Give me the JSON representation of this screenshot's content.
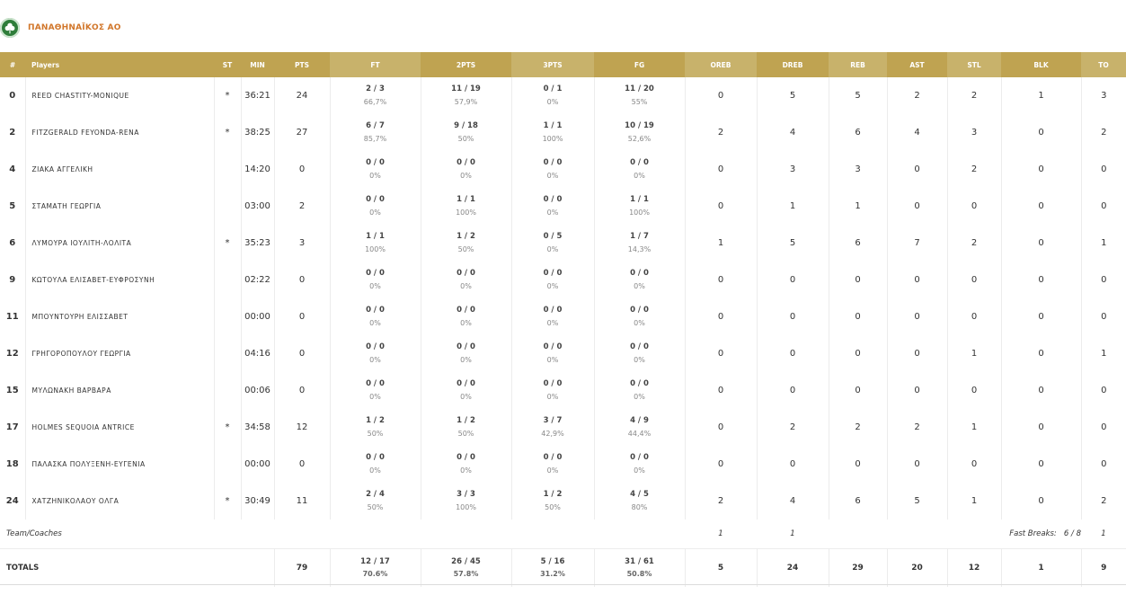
{
  "team": {
    "name": "ΠΑΝΑΘΗΝΑΪΚΟΣ ΑΟ",
    "logo_icon": "clover-logo-icon",
    "logo_color": "#2e7d3a"
  },
  "colors": {
    "header_gold": "#bfa351",
    "header_gold_light": "#c8b26b",
    "team_name": "#d1762a"
  },
  "columns": [
    "#",
    "Players",
    "ST",
    "MIN",
    "PTS",
    "FT",
    "2PTS",
    "3PTS",
    "FG",
    "OREB",
    "DREB",
    "REB",
    "AST",
    "STL",
    "BLK",
    "TO"
  ],
  "players": [
    {
      "num": "0",
      "name": "REED CHASTITY-MONIQUE",
      "st": "*",
      "min": "36:21",
      "pts": "24",
      "ft": "2 / 3",
      "ft_pct": "66,7%",
      "p2": "11 / 19",
      "p2_pct": "57,9%",
      "p3": "0 / 1",
      "p3_pct": "0%",
      "fg": "11 / 20",
      "fg_pct": "55%",
      "oreb": "0",
      "dreb": "5",
      "reb": "5",
      "ast": "2",
      "stl": "2",
      "blk": "1",
      "to": "3"
    },
    {
      "num": "2",
      "name": "FITZGERALD FEYONDA-RENA",
      "st": "*",
      "min": "38:25",
      "pts": "27",
      "ft": "6 / 7",
      "ft_pct": "85,7%",
      "p2": "9 / 18",
      "p2_pct": "50%",
      "p3": "1 / 1",
      "p3_pct": "100%",
      "fg": "10 / 19",
      "fg_pct": "52,6%",
      "oreb": "2",
      "dreb": "4",
      "reb": "6",
      "ast": "4",
      "stl": "3",
      "blk": "0",
      "to": "2"
    },
    {
      "num": "4",
      "name": "ΖΙΑΚΑ ΑΓΓΕΛΙΚΗ",
      "st": "",
      "min": "14:20",
      "pts": "0",
      "ft": "0 / 0",
      "ft_pct": "0%",
      "p2": "0 / 0",
      "p2_pct": "0%",
      "p3": "0 / 0",
      "p3_pct": "0%",
      "fg": "0 / 0",
      "fg_pct": "0%",
      "oreb": "0",
      "dreb": "3",
      "reb": "3",
      "ast": "0",
      "stl": "2",
      "blk": "0",
      "to": "0"
    },
    {
      "num": "5",
      "name": "ΣΤΑΜΑΤΗ ΓΕΩΡΓΙΑ",
      "st": "",
      "min": "03:00",
      "pts": "2",
      "ft": "0 / 0",
      "ft_pct": "0%",
      "p2": "1 / 1",
      "p2_pct": "100%",
      "p3": "0 / 0",
      "p3_pct": "0%",
      "fg": "1 / 1",
      "fg_pct": "100%",
      "oreb": "0",
      "dreb": "1",
      "reb": "1",
      "ast": "0",
      "stl": "0",
      "blk": "0",
      "to": "0"
    },
    {
      "num": "6",
      "name": "ΛΥΜΟΥΡΑ ΙΟΥΛΙΤΗ-ΛΟΛΙΤΑ",
      "st": "*",
      "min": "35:23",
      "pts": "3",
      "ft": "1 / 1",
      "ft_pct": "100%",
      "p2": "1 / 2",
      "p2_pct": "50%",
      "p3": "0 / 5",
      "p3_pct": "0%",
      "fg": "1 / 7",
      "fg_pct": "14,3%",
      "oreb": "1",
      "dreb": "5",
      "reb": "6",
      "ast": "7",
      "stl": "2",
      "blk": "0",
      "to": "1"
    },
    {
      "num": "9",
      "name": "ΚΩΤΟΥΛΑ ΕΛΙΣΑΒΕΤ-ΕΥΦΡΟΣΥΝΗ",
      "st": "",
      "min": "02:22",
      "pts": "0",
      "ft": "0 / 0",
      "ft_pct": "0%",
      "p2": "0 / 0",
      "p2_pct": "0%",
      "p3": "0 / 0",
      "p3_pct": "0%",
      "fg": "0 / 0",
      "fg_pct": "0%",
      "oreb": "0",
      "dreb": "0",
      "reb": "0",
      "ast": "0",
      "stl": "0",
      "blk": "0",
      "to": "0"
    },
    {
      "num": "11",
      "name": "ΜΠΟΥΝΤΟΥΡΗ ΕΛΙΣΣΑΒΕΤ",
      "st": "",
      "min": "00:00",
      "pts": "0",
      "ft": "0 / 0",
      "ft_pct": "0%",
      "p2": "0 / 0",
      "p2_pct": "0%",
      "p3": "0 / 0",
      "p3_pct": "0%",
      "fg": "0 / 0",
      "fg_pct": "0%",
      "oreb": "0",
      "dreb": "0",
      "reb": "0",
      "ast": "0",
      "stl": "0",
      "blk": "0",
      "to": "0"
    },
    {
      "num": "12",
      "name": "ΓΡΗΓΟΡΟΠΟΥΛΟΥ ΓΕΩΡΓΙΑ",
      "st": "",
      "min": "04:16",
      "pts": "0",
      "ft": "0 / 0",
      "ft_pct": "0%",
      "p2": "0 / 0",
      "p2_pct": "0%",
      "p3": "0 / 0",
      "p3_pct": "0%",
      "fg": "0 / 0",
      "fg_pct": "0%",
      "oreb": "0",
      "dreb": "0",
      "reb": "0",
      "ast": "0",
      "stl": "1",
      "blk": "0",
      "to": "1"
    },
    {
      "num": "15",
      "name": "ΜΥΛΩΝΑΚΗ ΒΑΡΒΑΡΑ",
      "st": "",
      "min": "00:06",
      "pts": "0",
      "ft": "0 / 0",
      "ft_pct": "0%",
      "p2": "0 / 0",
      "p2_pct": "0%",
      "p3": "0 / 0",
      "p3_pct": "0%",
      "fg": "0 / 0",
      "fg_pct": "0%",
      "oreb": "0",
      "dreb": "0",
      "reb": "0",
      "ast": "0",
      "stl": "0",
      "blk": "0",
      "to": "0"
    },
    {
      "num": "17",
      "name": "HOLMES SEQUOIA ANTRICE",
      "st": "*",
      "min": "34:58",
      "pts": "12",
      "ft": "1 / 2",
      "ft_pct": "50%",
      "p2": "1 / 2",
      "p2_pct": "50%",
      "p3": "3 / 7",
      "p3_pct": "42,9%",
      "fg": "4 / 9",
      "fg_pct": "44,4%",
      "oreb": "0",
      "dreb": "2",
      "reb": "2",
      "ast": "2",
      "stl": "1",
      "blk": "0",
      "to": "0"
    },
    {
      "num": "18",
      "name": "ΠΑΛΑΣΚΑ ΠΟΛΥΞΕΝΗ-ΕΥΓΕΝΙΑ",
      "st": "",
      "min": "00:00",
      "pts": "0",
      "ft": "0 / 0",
      "ft_pct": "0%",
      "p2": "0 / 0",
      "p2_pct": "0%",
      "p3": "0 / 0",
      "p3_pct": "0%",
      "fg": "0 / 0",
      "fg_pct": "0%",
      "oreb": "0",
      "dreb": "0",
      "reb": "0",
      "ast": "0",
      "stl": "0",
      "blk": "0",
      "to": "0"
    },
    {
      "num": "24",
      "name": "ΧΑΤΖΗΝΙΚΟΛΑΟΥ ΟΛΓΑ",
      "st": "*",
      "min": "30:49",
      "pts": "11",
      "ft": "2 / 4",
      "ft_pct": "50%",
      "p2": "3 / 3",
      "p2_pct": "100%",
      "p3": "1 / 2",
      "p3_pct": "50%",
      "fg": "4 / 5",
      "fg_pct": "80%",
      "oreb": "2",
      "dreb": "4",
      "reb": "6",
      "ast": "5",
      "stl": "1",
      "blk": "0",
      "to": "2"
    }
  ],
  "team_coaches": {
    "label": "Team/Coaches",
    "oreb": "1",
    "dreb": "1",
    "fast_breaks_label": "Fast Breaks:",
    "fast_breaks_value": "6 / 8",
    "to": "1"
  },
  "totals": {
    "label": "TOTALS",
    "pts": "79",
    "ft": "12 / 17",
    "ft_pct": "70.6%",
    "p2": "26 / 45",
    "p2_pct": "57.8%",
    "p3": "5 / 16",
    "p3_pct": "31.2%",
    "fg": "31 / 61",
    "fg_pct": "50.8%",
    "oreb": "5",
    "dreb": "24",
    "reb": "29",
    "ast": "20",
    "stl": "12",
    "blk": "1",
    "to": "9"
  }
}
